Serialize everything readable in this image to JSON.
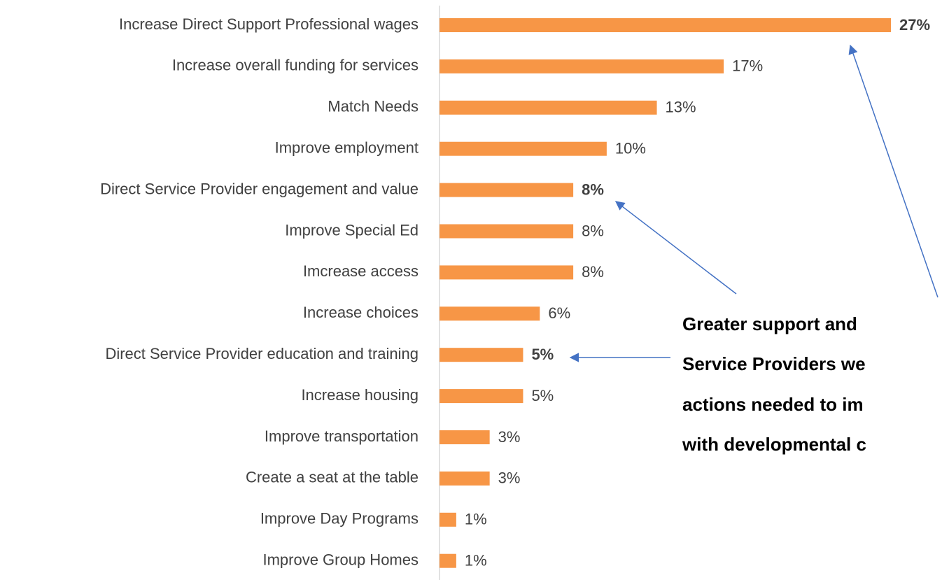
{
  "chart_data": {
    "type": "bar",
    "orientation": "horizontal",
    "categories": [
      "Increase Direct Support Professional wages",
      "Increase overall funding for services",
      "Match Needs",
      "Improve employment",
      "Direct Service Provider engagement and value",
      "Improve Special Ed",
      "Imcrease access",
      "Increase choices",
      "Direct Service Provider education and training",
      "Increase housing",
      "Improve transportation",
      "Create a seat at the table",
      "Improve Day Programs",
      "Improve Group Homes"
    ],
    "values": [
      27,
      17,
      13,
      10,
      8,
      8,
      8,
      6,
      5,
      5,
      3,
      3,
      1,
      1
    ],
    "value_labels": [
      "27%",
      "17%",
      "13%",
      "10%",
      "8%",
      "8%",
      "8%",
      "6%",
      "5%",
      "5%",
      "3%",
      "3%",
      "1%",
      "1%"
    ],
    "bold_value_labels": [
      0,
      4,
      8
    ],
    "color": "#f79646",
    "xlim": [
      0,
      27
    ],
    "annotation": [
      "Greater support and",
      "Service Providers we",
      "actions needed to im",
      "with developmental c"
    ]
  }
}
